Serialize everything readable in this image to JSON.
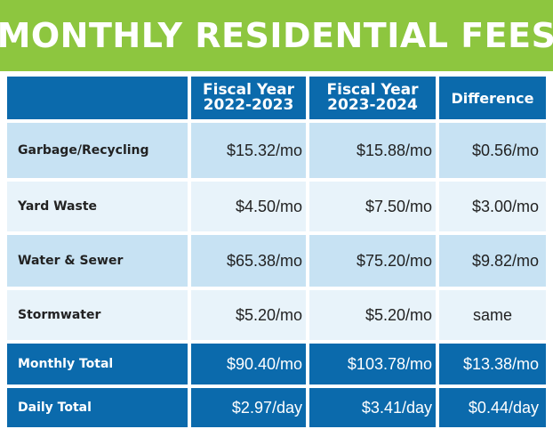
{
  "title": "MONTHLY RESIDENTIAL FEES",
  "headers": {
    "empty": "",
    "col1": "Fiscal Year\n2022-2023",
    "col2": "Fiscal Year\n2023-2024",
    "col3": "Difference"
  },
  "rows": [
    {
      "label": "Garbage/Recycling",
      "v1": "$15.32/mo",
      "v2": "$15.88/mo",
      "v3": "$0.56/mo"
    },
    {
      "label": "Yard Waste",
      "v1": "$4.50/mo",
      "v2": "$7.50/mo",
      "v3": "$3.00/mo"
    },
    {
      "label": "Water & Sewer",
      "v1": "$65.38/mo",
      "v2": "$75.20/mo",
      "v3": "$9.82/mo"
    },
    {
      "label": "Stormwater",
      "v1": "$5.20/mo",
      "v2": "$5.20/mo",
      "v3": "same"
    }
  ],
  "totals": [
    {
      "label": "Monthly Total",
      "v1": "$90.40/mo",
      "v2": "$103.78/mo",
      "v3": "$13.38/mo"
    },
    {
      "label": "Daily Total",
      "v1": "$2.97/day",
      "v2": "$3.41/day",
      "v3": "$0.44/day"
    }
  ],
  "colors": {
    "banner": "#8dc63f",
    "header": "#0b6aac",
    "row_dark": "#c7e2f3",
    "row_light": "#e8f3fa"
  }
}
